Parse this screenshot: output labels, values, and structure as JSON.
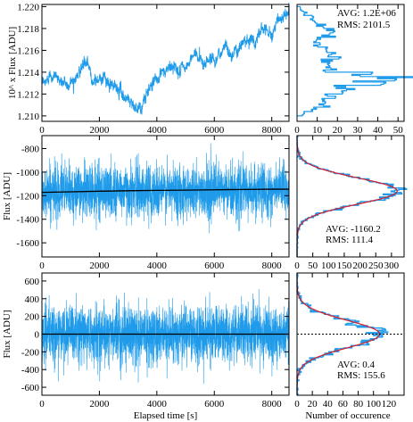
{
  "chart_data": [
    {
      "type": "line",
      "panel": "top-timeseries",
      "ylabel": "10^ x Flux [ADU]",
      "xlabel": "",
      "xlim": [
        0,
        8600
      ],
      "ylim": [
        1.2095,
        1.2202
      ],
      "xticks": [
        "0",
        "2000",
        "4000",
        "6000",
        "8000"
      ],
      "yticks": [
        "1.220",
        "1.218",
        "1.216",
        "1.214",
        "1.212",
        "1.210"
      ],
      "series": [
        {
          "x": [
            0,
            150,
            300,
            500,
            700,
            900,
            1100,
            1300,
            1500,
            1700,
            1900,
            2100,
            2300,
            2500,
            2700,
            2900,
            3100,
            3300,
            3450,
            3600,
            3800,
            4000,
            4200,
            4400,
            4600,
            4800,
            5000,
            5200,
            5400,
            5600,
            5800,
            6000,
            6200,
            6400,
            6600,
            6800,
            7000,
            7200,
            7400,
            7600,
            7800,
            8000,
            8200,
            8400,
            8600
          ],
          "values": [
            1.2128,
            1.213,
            1.2141,
            1.2136,
            1.2131,
            1.2128,
            1.2134,
            1.2141,
            1.2148,
            1.2139,
            1.2132,
            1.2138,
            1.2127,
            1.2126,
            1.2124,
            1.2118,
            1.2114,
            1.2109,
            1.2104,
            1.2116,
            1.2131,
            1.2136,
            1.2136,
            1.2143,
            1.2146,
            1.2141,
            1.2143,
            1.2152,
            1.2157,
            1.2149,
            1.2153,
            1.2151,
            1.2158,
            1.2164,
            1.2156,
            1.2163,
            1.2168,
            1.2174,
            1.2166,
            1.2178,
            1.2183,
            1.2176,
            1.2186,
            1.2188,
            1.2199
          ]
        }
      ]
    },
    {
      "type": "bar",
      "panel": "top-histogram",
      "orientation": "horizontal",
      "xlabel": "",
      "xlim": [
        0,
        53
      ],
      "ylim": [
        1.2095,
        1.2202
      ],
      "xticks": [
        "0",
        "10",
        "20",
        "30",
        "40",
        "50"
      ],
      "annotations": [
        "AVG: 1.2E+06",
        "RMS: 2101.5"
      ],
      "bins": [
        1.2102,
        1.2106,
        1.211,
        1.2114,
        1.2118,
        1.2122,
        1.2126,
        1.213,
        1.2134,
        1.2138,
        1.2142,
        1.2146,
        1.215,
        1.2154,
        1.2158,
        1.2162,
        1.2166,
        1.217,
        1.2174,
        1.2178,
        1.2182,
        1.2186,
        1.219,
        1.2194,
        1.2198
      ],
      "values": [
        3,
        9,
        14,
        12,
        16,
        20,
        24,
        36,
        50,
        30,
        16,
        13,
        15,
        18,
        17,
        13,
        10,
        12,
        16,
        15,
        12,
        8,
        7,
        4,
        2
      ]
    },
    {
      "type": "line",
      "panel": "middle-timeseries",
      "ylabel": "Flux [ADU]",
      "xlabel": "",
      "xlim": [
        0,
        8600
      ],
      "ylim": [
        -1720,
        -690
      ],
      "xticks": [
        "0",
        "2000",
        "4000",
        "6000",
        "8000"
      ],
      "yticks": [
        "-800",
        "-1000",
        "-1200",
        "-1400",
        "-1600"
      ],
      "noise": {
        "mean": -1160,
        "rms": 111.4
      },
      "series": [
        {
          "x": [
            0,
            1000,
            2000,
            3000,
            4000,
            5000,
            6000,
            7000,
            8000,
            8600
          ],
          "values": [
            -1172,
            -1167,
            -1162,
            -1158,
            -1155,
            -1153,
            -1150,
            -1147,
            -1145,
            -1145
          ]
        }
      ]
    },
    {
      "type": "bar",
      "panel": "middle-histogram",
      "orientation": "horizontal",
      "xlabel": "",
      "xlim": [
        0,
        340
      ],
      "ylim": [
        -1720,
        -690
      ],
      "xticks": [
        "0",
        "50",
        "100",
        "150",
        "200",
        "250",
        "300"
      ],
      "annotations": [
        "AVG: -1160.2",
        "RMS: 111.4"
      ],
      "gauss": {
        "amp": 318,
        "mu": -1160.2,
        "sigma": 111.4
      }
    },
    {
      "type": "line",
      "panel": "bottom-timeseries",
      "ylabel": "Flux [ADU]",
      "xlabel": "Elapsed time [s]",
      "xlim": [
        0,
        8600
      ],
      "ylim": [
        -690,
        690
      ],
      "xticks": [
        "0",
        "2000",
        "4000",
        "6000",
        "8000"
      ],
      "yticks": [
        "600",
        "400",
        "200",
        "0",
        "-200",
        "-400",
        "-600"
      ],
      "noise": {
        "mean": 0.4,
        "rms": 155.6
      },
      "series": [
        {
          "x": [
            0,
            8600
          ],
          "values": [
            0,
            0
          ]
        }
      ]
    },
    {
      "type": "bar",
      "panel": "bottom-histogram",
      "orientation": "horizontal",
      "xlabel": "Number of occurence",
      "xlim": [
        0,
        140
      ],
      "ylim": [
        -690,
        690
      ],
      "xticks": [
        "0",
        "20",
        "40",
        "60",
        "80",
        "100",
        "120"
      ],
      "annotations": [
        "AVG:  0.4",
        "RMS:  155.6"
      ],
      "gauss": {
        "amp": 108,
        "mu": 0.4,
        "sigma": 155.6
      }
    }
  ],
  "colors": {
    "signal": "#1f9bea",
    "trend": "#000000",
    "fit": "#d21f2f",
    "frame": "#000000"
  }
}
